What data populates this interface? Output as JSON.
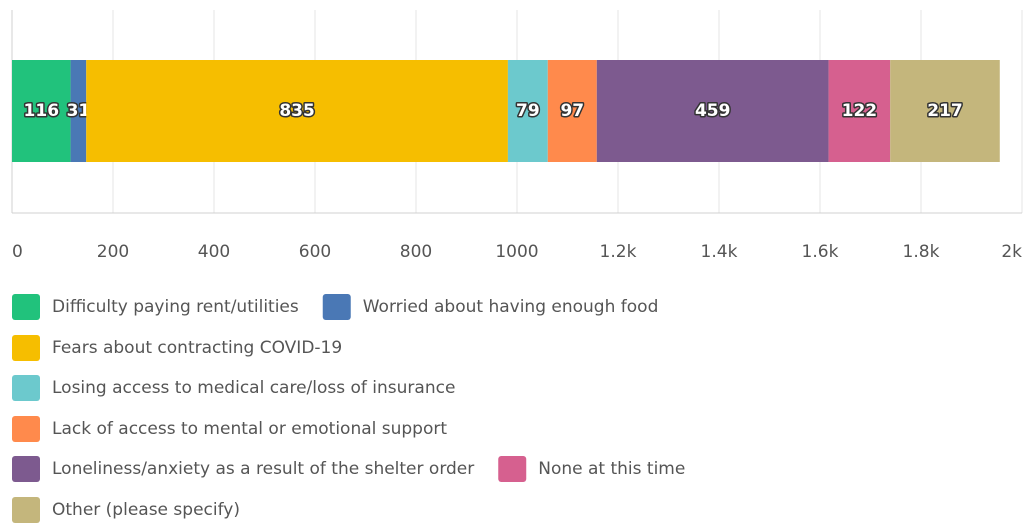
{
  "chart_data": {
    "type": "stacked-bar-horizontal",
    "categories": [
      null
    ],
    "series": [
      {
        "name": "Difficulty paying rent/utilities",
        "color": "#21c27c",
        "values": [
          116
        ]
      },
      {
        "name": "Worried about having enough food",
        "color": "#4a78b5",
        "values": [
          31
        ]
      },
      {
        "name": "Fears about contracting COVID-19",
        "color": "#f6be00",
        "values": [
          835
        ]
      },
      {
        "name": "Losing access to medical care/loss of insurance",
        "color": "#6cc9cd",
        "values": [
          79
        ]
      },
      {
        "name": "Lack of access to mental or emotional support",
        "color": "#ff8a4c",
        "values": [
          97
        ]
      },
      {
        "name": "Loneliness/anxiety as a result of the shelter order",
        "color": "#7d5a8f",
        "values": [
          459
        ]
      },
      {
        "name": "None at this time",
        "color": "#d6608f",
        "values": [
          122
        ]
      },
      {
        "name": "Other (please specify)",
        "color": "#c4b67c",
        "values": [
          217
        ]
      }
    ],
    "xlim": [
      0,
      2000
    ],
    "xticks": [
      0,
      200,
      400,
      600,
      800,
      1000,
      {
        "value": 1200,
        "label": "1.2k"
      },
      {
        "value": 1400,
        "label": "1.4k"
      },
      {
        "value": 1600,
        "label": "1.6k"
      },
      {
        "value": 1800,
        "label": "1.8k"
      },
      {
        "value": 2000,
        "label": "2k"
      }
    ],
    "grid": true
  }
}
